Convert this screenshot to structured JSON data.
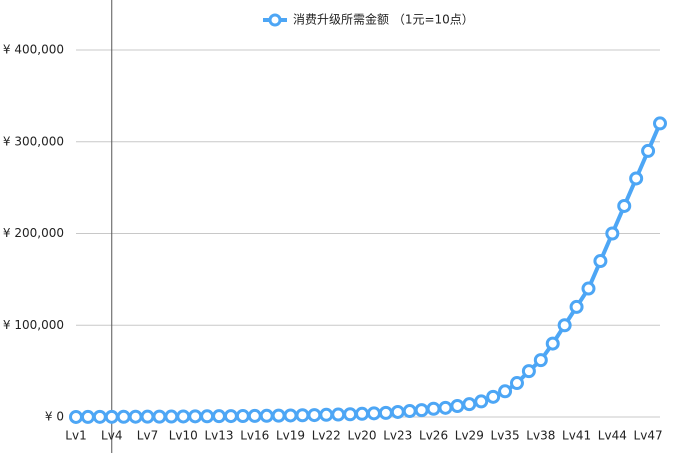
{
  "chart_data": {
    "type": "line",
    "categories": [
      "Lv1",
      null,
      null,
      "Lv4",
      null,
      null,
      "Lv7",
      null,
      null,
      "Lv10",
      null,
      null,
      "Lv13",
      null,
      null,
      "Lv16",
      null,
      null,
      "Lv19",
      null,
      null,
      "Lv22",
      null,
      null,
      "Lv20",
      null,
      null,
      "Lv23",
      null,
      null,
      "Lv26",
      null,
      null,
      "Lv29",
      null,
      null,
      "Lv35",
      null,
      null,
      "Lv38",
      null,
      null,
      "Lv41",
      null,
      null,
      "Lv44",
      null,
      null,
      "Lv47",
      null
    ],
    "series": [
      {
        "name": "消费升级所需金额 （1元=10点）",
        "color": "#4da6f5",
        "values": [
          50,
          100,
          150,
          200,
          250,
          300,
          350,
          400,
          500,
          600,
          700,
          800,
          900,
          1000,
          1100,
          1200,
          1300,
          1500,
          1700,
          1900,
          2100,
          2400,
          2700,
          3000,
          3500,
          4000,
          4500,
          5500,
          6500,
          7500,
          9000,
          10000,
          12000,
          14000,
          17000,
          22000,
          28000,
          37000,
          50000,
          62000,
          80000,
          100000,
          120000,
          140000,
          170000,
          200000,
          230000,
          260000,
          290000,
          320000
        ]
      }
    ],
    "ylim": [
      0,
      400000
    ],
    "yticks": [
      {
        "value": 0,
        "label": "¥ 0"
      },
      {
        "value": 100000,
        "label": "¥ 100,000"
      },
      {
        "value": 200000,
        "label": "¥ 200,000"
      },
      {
        "value": 300000,
        "label": "¥ 300,000"
      },
      {
        "value": 400000,
        "label": "¥ 400,000"
      }
    ],
    "grid": true,
    "legend": "top"
  }
}
